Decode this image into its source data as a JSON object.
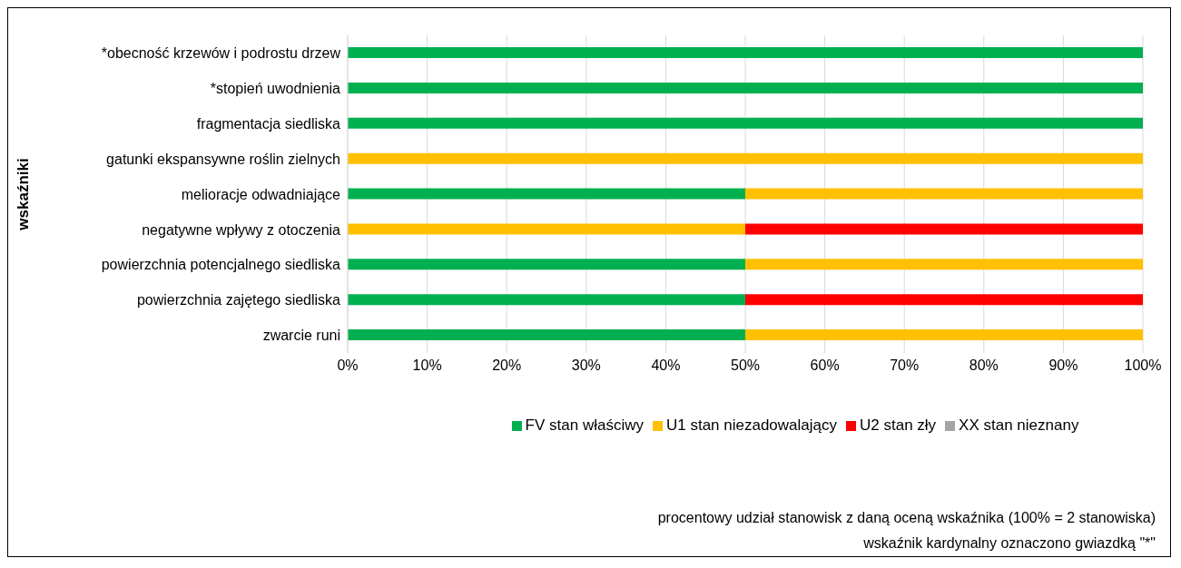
{
  "chart_data": {
    "type": "bar",
    "orientation": "horizontal",
    "stacked": true,
    "ylabel": "wskaźniki",
    "categories": [
      "*obecność krzewów i podrostu drzew",
      "*stopień uwodnienia",
      "fragmentacja siedliska",
      "gatunki ekspansywne roślin zielnych",
      "melioracje odwadniające",
      "negatywne wpływy z otoczenia",
      "powierzchnia potencjalnego siedliska",
      "powierzchnia zajętego siedliska",
      "zwarcie runi"
    ],
    "series": [
      {
        "name": "FV stan właściwy",
        "color": "#00b050",
        "values": [
          100,
          100,
          100,
          0,
          50,
          0,
          50,
          50,
          50
        ]
      },
      {
        "name": "U1 stan niezadowalający",
        "color": "#ffc000",
        "values": [
          0,
          0,
          0,
          100,
          50,
          50,
          50,
          0,
          50
        ]
      },
      {
        "name": "U2 stan zły",
        "color": "#ff0000",
        "values": [
          0,
          0,
          0,
          0,
          0,
          50,
          0,
          50,
          0
        ]
      },
      {
        "name": "XX stan nieznany",
        "color": "#a5a5a5",
        "values": [
          0,
          0,
          0,
          0,
          0,
          0,
          0,
          0,
          0
        ]
      }
    ],
    "xlim": [
      0,
      100
    ],
    "xticks": [
      {
        "value": 0,
        "label": "0%"
      },
      {
        "value": 10,
        "label": "10%"
      },
      {
        "value": 20,
        "label": "20%"
      },
      {
        "value": 30,
        "label": "30%"
      },
      {
        "value": 40,
        "label": "40%"
      },
      {
        "value": 50,
        "label": "50%"
      },
      {
        "value": 60,
        "label": "60%"
      },
      {
        "value": 70,
        "label": "70%"
      },
      {
        "value": 80,
        "label": "80%"
      },
      {
        "value": 90,
        "label": "90%"
      },
      {
        "value": 100,
        "label": "100%"
      }
    ],
    "grid": "x",
    "legend": "bottom",
    "annotations": [
      "procentowy udział stanowisk z daną oceną wskaźnika (100% = 2 stanowiska)",
      "wskaźnik kardynalny oznaczono gwiazdką \"*\""
    ]
  }
}
